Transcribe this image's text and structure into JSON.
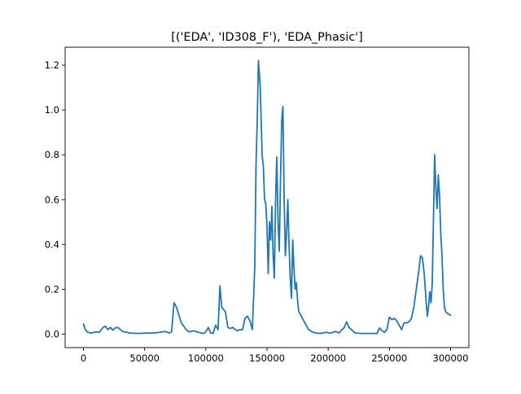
{
  "chart_data": {
    "type": "line",
    "title": "[('EDA', 'ID308_F'), 'EDA_Phasic']",
    "xlabel": "",
    "ylabel": "",
    "xlim": [
      -15000,
      315000
    ],
    "ylim": [
      -0.06,
      1.28
    ],
    "xticks": [
      0,
      50000,
      100000,
      150000,
      200000,
      250000,
      300000
    ],
    "xtick_labels": [
      "0",
      "50000",
      "100000",
      "150000",
      "200000",
      "250000",
      "300000"
    ],
    "yticks": [
      0.0,
      0.2,
      0.4,
      0.6,
      0.8,
      1.0,
      1.2
    ],
    "ytick_labels": [
      "0.0",
      "0.2",
      "0.4",
      "0.6",
      "0.8",
      "1.0",
      "1.2"
    ],
    "grid": false,
    "series": [
      {
        "color": "#1f77b4",
        "x": [
          0,
          1500,
          3000,
          6000,
          10000,
          13000,
          16000,
          18000,
          20000,
          22000,
          24000,
          26000,
          28000,
          32000,
          38000,
          45000,
          52000,
          58000,
          62000,
          67000,
          70000,
          72000,
          74000,
          76000,
          80000,
          84000,
          86000,
          90000,
          94000,
          98000,
          100000,
          102000,
          104000,
          106000,
          108000,
          110000,
          111500,
          113000,
          116000,
          118000,
          120000,
          122000,
          124000,
          126000,
          128000,
          130000,
          132000,
          134000,
          136000,
          138000,
          140000,
          141000,
          142000,
          143000,
          144500,
          146000,
          147000,
          148000,
          149000,
          150000,
          151000,
          152000,
          153000,
          154000,
          155000,
          156000,
          157000,
          158000,
          159000,
          160000,
          161000,
          162000,
          163000,
          164000,
          165000,
          166000,
          167000,
          168000,
          169000,
          170000,
          171000,
          172000,
          173000,
          174000,
          175000,
          176000,
          178000,
          181000,
          184000,
          187000,
          190000,
          194000,
          198000,
          202000,
          206000,
          209000,
          211000,
          213000,
          215000,
          217000,
          219000,
          222000,
          228000,
          234000,
          240000,
          242000,
          244000,
          246000,
          248000,
          250000,
          252000,
          254000,
          256000,
          258000,
          260000,
          262000,
          264000,
          266000,
          268000,
          270000,
          272000,
          274000,
          275500,
          277000,
          278500,
          280000,
          281000,
          282000,
          283000,
          284000,
          285000,
          286000,
          287000,
          288000,
          289000,
          290000,
          291000,
          292000,
          293000,
          294000,
          295000,
          296000,
          297000,
          298000,
          300000
        ],
        "y": [
          0.045,
          0.02,
          0.01,
          0.005,
          0.01,
          0.008,
          0.03,
          0.035,
          0.02,
          0.03,
          0.018,
          0.028,
          0.03,
          0.012,
          0.005,
          0.003,
          0.005,
          0.005,
          0.008,
          0.012,
          0.005,
          0.01,
          0.14,
          0.12,
          0.05,
          0.02,
          0.01,
          0.015,
          0.008,
          0.003,
          0.01,
          0.03,
          0.005,
          0.003,
          0.04,
          0.02,
          0.215,
          0.12,
          0.1,
          0.03,
          0.025,
          0.03,
          0.02,
          0.015,
          0.02,
          0.02,
          0.07,
          0.08,
          0.06,
          0.02,
          0.3,
          0.75,
          0.95,
          1.22,
          1.1,
          0.8,
          0.75,
          0.6,
          0.58,
          0.48,
          0.27,
          0.5,
          0.42,
          0.57,
          0.35,
          0.25,
          0.6,
          0.79,
          0.5,
          0.37,
          0.68,
          0.95,
          1.015,
          0.6,
          0.35,
          0.45,
          0.6,
          0.4,
          0.25,
          0.16,
          0.42,
          0.3,
          0.2,
          0.23,
          0.15,
          0.1,
          0.08,
          0.05,
          0.02,
          0.01,
          0.005,
          0.003,
          0.008,
          0.005,
          0.012,
          0.005,
          0.02,
          0.028,
          0.055,
          0.03,
          0.02,
          0.005,
          0.003,
          0.003,
          0.003,
          0.028,
          0.015,
          0.008,
          0.02,
          0.075,
          0.065,
          0.07,
          0.06,
          0.04,
          0.02,
          0.05,
          0.05,
          0.055,
          0.07,
          0.12,
          0.2,
          0.28,
          0.35,
          0.34,
          0.27,
          0.15,
          0.08,
          0.12,
          0.19,
          0.14,
          0.22,
          0.5,
          0.8,
          0.65,
          0.56,
          0.71,
          0.62,
          0.45,
          0.35,
          0.2,
          0.12,
          0.1,
          0.095,
          0.09,
          0.085
        ]
      }
    ]
  }
}
